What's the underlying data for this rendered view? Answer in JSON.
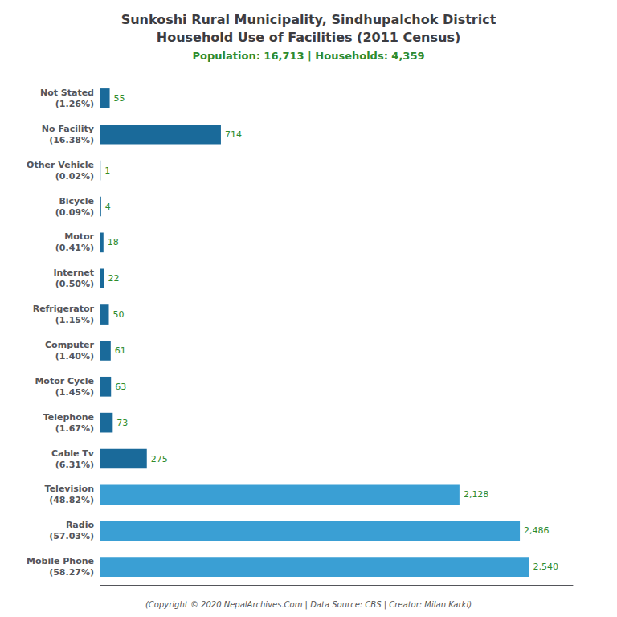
{
  "chart_data": {
    "type": "bar",
    "orientation": "horizontal",
    "title": "Sunkoshi Rural Municipality, Sindhupalchok District\nHousehold Use of Facilities (2011 Census)",
    "subtitle": "Population: 16,713 | Households: 4,359",
    "annotations": [
      "(Copyright © 2020 NepalArchives.Com | Data Source: CBS | Creator: Milan Karki)"
    ],
    "categories": [
      "Not Stated\n(1.26%)",
      "No Facility\n(16.38%)",
      "Other Vehicle\n(0.02%)",
      "Bicycle\n(0.09%)",
      "Motor\n(0.41%)",
      "Internet\n(0.50%)",
      "Refrigerator\n(1.15%)",
      "Computer\n(1.40%)",
      "Motor Cycle\n(1.45%)",
      "Telephone\n(1.67%)",
      "Cable Tv\n(6.31%)",
      "Television\n(48.82%)",
      "Radio\n(57.03%)",
      "Mobile Phone\n(58.27%)"
    ],
    "values": [
      55,
      714,
      1,
      4,
      18,
      22,
      50,
      61,
      63,
      73,
      275,
      2128,
      2486,
      2540
    ],
    "value_labels": [
      "55",
      "714",
      "1",
      "4",
      "18",
      "22",
      "50",
      "61",
      "63",
      "73",
      "275",
      "2,128",
      "2,486",
      "2,540"
    ],
    "data_labels": true,
    "colors": [
      "#1a6a9a",
      "#1a6a9a",
      "#1a6a9a",
      "#1a6a9a",
      "#1a6a9a",
      "#1a6a9a",
      "#1a6a9a",
      "#1a6a9a",
      "#1a6a9a",
      "#1a6a9a",
      "#1a6a9a",
      "#3a9fd4",
      "#3a9fd4",
      "#3a9fd4"
    ],
    "xlim": [
      0,
      2800
    ],
    "tick_labels": "y",
    "grid": false
  }
}
